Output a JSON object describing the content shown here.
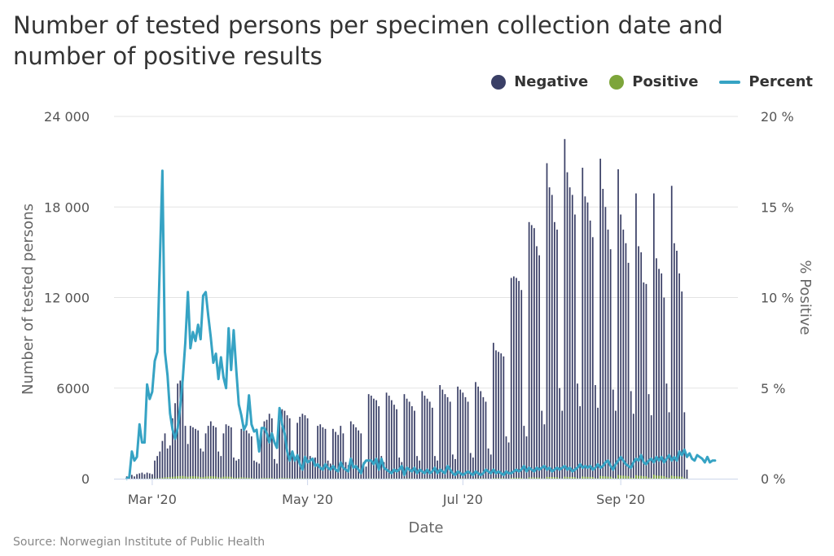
{
  "title": "Number of tested persons per specimen collection date and number of positive results",
  "source": "Source: Norwegian Institute of Public Health",
  "legend": [
    {
      "label": "Negative",
      "color": "#3a3f66",
      "shape": "dot"
    },
    {
      "label": "Positive",
      "color": "#7da53a",
      "shape": "dot"
    },
    {
      "label": "Percent",
      "color": "#36a3c4",
      "shape": "line"
    }
  ],
  "chart_data": {
    "type": "bar",
    "xlabel": "Date",
    "ylabel": "Number of tested persons",
    "y2label": "% Positive",
    "ylim": [
      0,
      24000
    ],
    "y2lim": [
      0,
      20
    ],
    "yticks": [
      "0",
      "6000",
      "12 000",
      "18 000",
      "24 000"
    ],
    "y2ticks": [
      "0 %",
      "5 %",
      "10 %",
      "15 %",
      "20 %"
    ],
    "xticks": [
      {
        "label": "Mar '20",
        "date": "2020-03-01"
      },
      {
        "label": "May '20",
        "date": "2020-05-01"
      },
      {
        "label": "Jul '20",
        "date": "2020-07-01"
      },
      {
        "label": "Sep '20",
        "date": "2020-09-01"
      }
    ],
    "grid": true,
    "bar_series": {
      "name": "Negative",
      "color": "#3a3f66"
    },
    "positive_series": {
      "name": "Positive",
      "color": "#7da53a"
    },
    "line_series": {
      "name": "Percent",
      "color": "#36a3c4"
    },
    "dates": [
      "2020-02-20",
      "2020-02-21",
      "2020-02-22",
      "2020-02-23",
      "2020-02-24",
      "2020-02-25",
      "2020-02-26",
      "2020-02-27",
      "2020-02-28",
      "2020-02-29",
      "2020-03-01",
      "2020-03-02",
      "2020-03-03",
      "2020-03-04",
      "2020-03-05",
      "2020-03-06",
      "2020-03-07",
      "2020-03-08",
      "2020-03-09",
      "2020-03-10",
      "2020-03-11",
      "2020-03-12",
      "2020-03-13",
      "2020-03-14",
      "2020-03-15",
      "2020-03-16",
      "2020-03-17",
      "2020-03-18",
      "2020-03-19",
      "2020-03-20",
      "2020-03-21",
      "2020-03-22",
      "2020-03-23",
      "2020-03-24",
      "2020-03-25",
      "2020-03-26",
      "2020-03-27",
      "2020-03-28",
      "2020-03-29",
      "2020-03-30",
      "2020-03-31",
      "2020-04-01",
      "2020-04-02",
      "2020-04-03",
      "2020-04-04",
      "2020-04-05",
      "2020-04-06",
      "2020-04-07",
      "2020-04-08",
      "2020-04-09",
      "2020-04-10",
      "2020-04-11",
      "2020-04-12",
      "2020-04-13",
      "2020-04-14",
      "2020-04-15",
      "2020-04-16",
      "2020-04-17",
      "2020-04-18",
      "2020-04-19",
      "2020-04-20",
      "2020-04-21",
      "2020-04-22",
      "2020-04-23",
      "2020-04-24",
      "2020-04-25",
      "2020-04-26",
      "2020-04-27",
      "2020-04-28",
      "2020-04-29",
      "2020-04-30",
      "2020-05-01",
      "2020-05-02",
      "2020-05-03",
      "2020-05-04",
      "2020-05-05",
      "2020-05-06",
      "2020-05-07",
      "2020-05-08",
      "2020-05-09",
      "2020-05-10",
      "2020-05-11",
      "2020-05-12",
      "2020-05-13",
      "2020-05-14",
      "2020-05-15",
      "2020-05-16",
      "2020-05-17",
      "2020-05-18",
      "2020-05-19",
      "2020-05-20",
      "2020-05-21",
      "2020-05-22",
      "2020-05-23",
      "2020-05-24",
      "2020-05-25",
      "2020-05-26",
      "2020-05-27",
      "2020-05-28",
      "2020-05-29",
      "2020-05-30",
      "2020-05-31",
      "2020-06-01",
      "2020-06-02",
      "2020-06-03",
      "2020-06-04",
      "2020-06-05",
      "2020-06-06",
      "2020-06-07",
      "2020-06-08",
      "2020-06-09",
      "2020-06-10",
      "2020-06-11",
      "2020-06-12",
      "2020-06-13",
      "2020-06-14",
      "2020-06-15",
      "2020-06-16",
      "2020-06-17",
      "2020-06-18",
      "2020-06-19",
      "2020-06-20",
      "2020-06-21",
      "2020-06-22",
      "2020-06-23",
      "2020-06-24",
      "2020-06-25",
      "2020-06-26",
      "2020-06-27",
      "2020-06-28",
      "2020-06-29",
      "2020-06-30",
      "2020-07-01",
      "2020-07-02",
      "2020-07-03",
      "2020-07-04",
      "2020-07-05",
      "2020-07-06",
      "2020-07-07",
      "2020-07-08",
      "2020-07-09",
      "2020-07-10",
      "2020-07-11",
      "2020-07-12",
      "2020-07-13",
      "2020-07-14",
      "2020-07-15",
      "2020-07-16",
      "2020-07-17",
      "2020-07-18",
      "2020-07-19",
      "2020-07-20",
      "2020-07-21",
      "2020-07-22",
      "2020-07-23",
      "2020-07-24",
      "2020-07-25",
      "2020-07-26",
      "2020-07-27",
      "2020-07-28",
      "2020-07-29",
      "2020-07-30",
      "2020-07-31",
      "2020-08-01",
      "2020-08-02",
      "2020-08-03",
      "2020-08-04",
      "2020-08-05",
      "2020-08-06",
      "2020-08-07",
      "2020-08-08",
      "2020-08-09",
      "2020-08-10",
      "2020-08-11",
      "2020-08-12",
      "2020-08-13",
      "2020-08-14",
      "2020-08-15",
      "2020-08-16",
      "2020-08-17",
      "2020-08-18",
      "2020-08-19",
      "2020-08-20",
      "2020-08-21",
      "2020-08-22",
      "2020-08-23",
      "2020-08-24",
      "2020-08-25",
      "2020-08-26",
      "2020-08-27",
      "2020-08-28",
      "2020-08-29",
      "2020-08-30",
      "2020-08-31",
      "2020-09-01",
      "2020-09-02",
      "2020-09-03",
      "2020-09-04",
      "2020-09-05",
      "2020-09-06",
      "2020-09-07",
      "2020-09-08",
      "2020-09-09",
      "2020-09-10",
      "2020-09-11",
      "2020-09-12",
      "2020-09-13",
      "2020-09-14",
      "2020-09-15",
      "2020-09-16",
      "2020-09-17",
      "2020-09-18",
      "2020-09-19",
      "2020-09-20",
      "2020-09-21",
      "2020-09-22",
      "2020-09-23",
      "2020-09-24",
      "2020-09-25",
      "2020-09-26",
      "2020-09-27",
      "2020-09-28",
      "2020-09-29",
      "2020-09-30",
      "2020-10-01",
      "2020-10-02",
      "2020-10-03",
      "2020-10-04",
      "2020-10-05",
      "2020-10-06",
      "2020-10-07",
      "2020-10-08",
      "2020-10-09",
      "2020-10-10",
      "2020-10-11",
      "2020-10-12",
      "2020-10-13",
      "2020-10-14"
    ],
    "negative": [
      150,
      200,
      250,
      150,
      300,
      350,
      400,
      300,
      400,
      350,
      300,
      1200,
      1500,
      1800,
      2500,
      3000,
      2000,
      2200,
      4000,
      5000,
      6300,
      6500,
      6800,
      3500,
      2300,
      3500,
      3400,
      3300,
      3200,
      2000,
      1800,
      3000,
      3500,
      3800,
      3500,
      3400,
      1800,
      1500,
      3000,
      3600,
      3500,
      3400,
      1400,
      1200,
      1300,
      3300,
      3300,
      3200,
      3000,
      2800,
      1200,
      1100,
      1000,
      3000,
      3800,
      3900,
      4300,
      4000,
      1300,
      1000,
      3900,
      4600,
      4500,
      4200,
      4000,
      1600,
      1400,
      3700,
      4100,
      4300,
      4200,
      4000,
      1500,
      1200,
      1400,
      3500,
      3600,
      3400,
      3300,
      1200,
      1000,
      3300,
      3100,
      2900,
      3500,
      3000,
      1100,
      900,
      3800,
      3600,
      3400,
      3200,
      3000,
      1100,
      800,
      5600,
      5500,
      5300,
      5200,
      4800,
      1500,
      1100,
      5700,
      5500,
      5200,
      4900,
      4600,
      1400,
      1100,
      5600,
      5300,
      5100,
      4800,
      4500,
      1500,
      1200,
      5800,
      5500,
      5300,
      5100,
      4700,
      1500,
      1200,
      6200,
      5900,
      5600,
      5400,
      5100,
      1600,
      1300,
      6100,
      5900,
      5700,
      5400,
      5100,
      1700,
      1400,
      6400,
      6100,
      5800,
      5400,
      5100,
      2000,
      1600,
      9000,
      8500,
      8400,
      8300,
      8100,
      2800,
      2400,
      13300,
      13400,
      13300,
      13100,
      12500,
      3500,
      2800,
      17000,
      16800,
      16600,
      15400,
      14800,
      4500,
      3600,
      20900,
      19300,
      18800,
      17000,
      16500,
      6000,
      4500,
      22500,
      20300,
      19300,
      18800,
      17500,
      6300,
      4800,
      20600,
      18700,
      18300,
      17100,
      16000,
      6200,
      4700,
      21200,
      19200,
      18000,
      16500,
      15200,
      5900,
      4500,
      20500,
      17500,
      16500,
      15600,
      14300,
      5800,
      4300,
      18900,
      15400,
      15000,
      13000,
      12900,
      5600,
      4200,
      18900,
      14600,
      13900,
      13600,
      12000,
      6300,
      4400,
      19400,
      15600,
      15100,
      13600,
      12400,
      4400,
      600
    ],
    "positive": [
      0,
      0,
      0,
      0,
      2,
      5,
      5,
      8,
      10,
      10,
      15,
      20,
      30,
      40,
      60,
      90,
      100,
      110,
      120,
      140,
      160,
      170,
      180,
      150,
      130,
      150,
      160,
      150,
      140,
      110,
      100,
      140,
      150,
      160,
      150,
      140,
      90,
      80,
      130,
      140,
      130,
      120,
      70,
      60,
      70,
      90,
      80,
      70,
      60,
      50,
      25,
      20,
      18,
      50,
      55,
      50,
      48,
      45,
      20,
      15,
      45,
      48,
      45,
      40,
      35,
      15,
      12,
      30,
      28,
      25,
      22,
      20,
      10,
      8,
      10,
      18,
      16,
      14,
      12,
      6,
      5,
      14,
      12,
      11,
      13,
      11,
      5,
      4,
      14,
      13,
      12,
      11,
      10,
      5,
      4,
      20,
      18,
      17,
      16,
      15,
      6,
      5,
      20,
      19,
      18,
      17,
      16,
      6,
      5,
      20,
      19,
      18,
      17,
      16,
      6,
      5,
      22,
      21,
      20,
      19,
      18,
      7,
      6,
      24,
      23,
      22,
      21,
      20,
      8,
      6,
      24,
      23,
      22,
      21,
      20,
      8,
      6,
      26,
      25,
      24,
      23,
      22,
      9,
      7,
      40,
      38,
      37,
      36,
      35,
      14,
      12,
      60,
      62,
      60,
      59,
      56,
      20,
      17,
      80,
      79,
      78,
      73,
      70,
      26,
      21,
      120,
      110,
      107,
      97,
      94,
      37,
      28,
      130,
      118,
      112,
      109,
      101,
      38,
      29,
      140,
      127,
      124,
      116,
      109,
      43,
      32,
      180,
      163,
      153,
      140,
      129,
      53,
      41,
      240,
      205,
      193,
      182,
      167,
      70,
      53,
      230,
      188,
      183,
      159,
      157,
      70,
      53,
      260,
      201,
      191,
      187,
      165,
      89,
      62,
      200,
      161,
      156,
      140,
      128,
      46,
      6
    ],
    "percent": [
      0.0,
      0.1,
      1.5,
      1.0,
      1.2,
      3.0,
      2.0,
      2.0,
      5.2,
      4.4,
      4.8,
      6.5,
      7.0,
      12.0,
      17.0,
      7.0,
      5.7,
      3.6,
      2.7,
      2.2,
      2.8,
      4.0,
      5.5,
      7.5,
      10.3,
      7.2,
      8.1,
      7.6,
      8.5,
      7.7,
      10.1,
      10.3,
      9.0,
      7.8,
      6.4,
      6.9,
      5.5,
      6.7,
      5.6,
      5.0,
      8.3,
      6.0,
      8.2,
      6.0,
      4.1,
      3.5,
      2.7,
      3.0,
      4.6,
      3.0,
      2.6,
      2.7,
      1.5,
      2.8,
      2.8,
      2.5,
      2.0,
      2.5,
      2.0,
      1.7,
      3.9,
      3.0,
      2.5,
      1.5,
      1.0,
      1.5,
      1.0,
      1.3,
      0.8,
      0.5,
      1.2,
      0.9,
      1.0,
      1.1,
      0.7,
      0.8,
      0.6,
      0.5,
      0.8,
      0.6,
      0.5,
      0.7,
      0.5,
      0.4,
      0.9,
      0.6,
      0.5,
      0.4,
      1.1,
      0.6,
      0.7,
      0.5,
      0.3,
      0.8,
      1.0,
      1.0,
      1.0,
      0.8,
      1.1,
      0.5,
      1.1,
      0.6,
      0.5,
      0.4,
      0.3,
      0.5,
      0.4,
      0.5,
      0.7,
      0.2,
      0.6,
      0.5,
      0.4,
      0.6,
      0.3,
      0.5,
      0.4,
      0.3,
      0.5,
      0.3,
      0.4,
      0.6,
      0.3,
      0.5,
      0.4,
      0.3,
      0.7,
      0.5,
      0.3,
      0.2,
      0.4,
      0.3,
      0.2,
      0.3,
      0.4,
      0.3,
      0.2,
      0.4,
      0.3,
      0.2,
      0.3,
      0.5,
      0.4,
      0.3,
      0.5,
      0.3,
      0.4,
      0.3,
      0.2,
      0.4,
      0.3,
      0.3,
      0.4,
      0.5,
      0.4,
      0.5,
      0.7,
      0.4,
      0.6,
      0.5,
      0.4,
      0.6,
      0.5,
      0.6,
      0.7,
      0.5,
      0.6,
      0.4,
      0.5,
      0.6,
      0.5,
      0.6,
      0.7,
      0.5,
      0.6,
      0.4,
      0.5,
      0.6,
      0.8,
      0.6,
      0.7,
      0.6,
      0.7,
      0.5,
      0.6,
      0.8,
      0.6,
      0.7,
      0.9,
      1.0,
      0.7,
      0.5,
      0.8,
      1.0,
      1.2,
      1.0,
      0.8,
      0.7,
      0.6,
      0.9,
      1.1,
      1.0,
      1.3,
      0.9,
      0.8,
      1.0,
      1.1,
      0.9,
      1.2,
      1.0,
      1.2,
      0.9,
      1.1,
      1.3,
      1.0,
      1.2,
      1.0,
      1.5,
      1.3,
      1.6,
      1.2,
      1.4,
      1.1,
      1.0,
      1.3,
      1.2,
      1.1,
      0.9,
      1.2,
      0.9,
      1.0,
      1.0
    ]
  }
}
